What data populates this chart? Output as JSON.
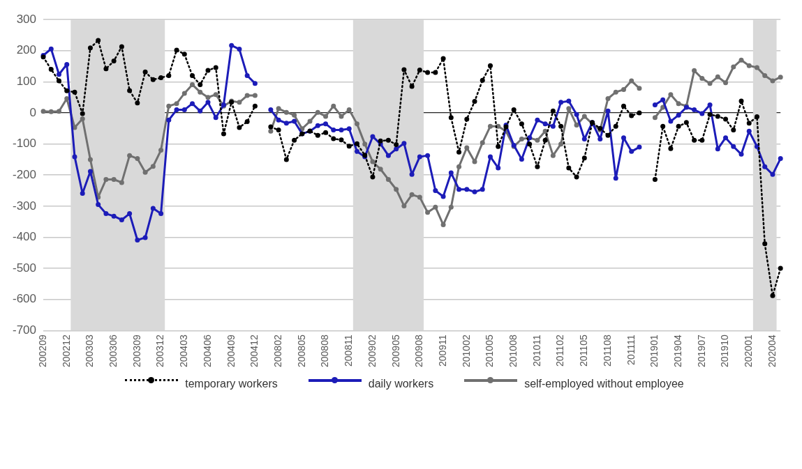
{
  "chart_data": {
    "type": "line",
    "categories": [
      "200209",
      null,
      null,
      "200212",
      null,
      null,
      "200303",
      null,
      null,
      "200306",
      null,
      null,
      "200309",
      null,
      null,
      "200312",
      null,
      null,
      "200403",
      null,
      null,
      "200406",
      null,
      null,
      "200409",
      null,
      null,
      "200412",
      null,
      null,
      "200802",
      null,
      null,
      "200805",
      null,
      null,
      "200808",
      null,
      null,
      "200811",
      null,
      null,
      "200902",
      null,
      null,
      "200905",
      null,
      null,
      "200908",
      null,
      null,
      "200911",
      null,
      null,
      "201002",
      null,
      null,
      "201005",
      null,
      null,
      "201008",
      null,
      null,
      "201011",
      null,
      null,
      "201102",
      null,
      null,
      "201105",
      null,
      null,
      "201108",
      null,
      null,
      "201111",
      null,
      null,
      "201901",
      null,
      null,
      "201904",
      null,
      null,
      "201907",
      null,
      null,
      "201910",
      null,
      null,
      "202001",
      null,
      null,
      "202004",
      null
    ],
    "series": [
      {
        "name": "temporary workers",
        "color": "#000000",
        "line_style": "dotted",
        "marker": "circle",
        "values": [
          180,
          140,
          103,
          71,
          67,
          -2,
          209,
          233,
          142,
          167,
          213,
          72,
          32,
          132,
          107,
          113,
          120,
          202,
          189,
          120,
          91,
          137,
          146,
          -67,
          35,
          -47,
          -28,
          22,
          null,
          -45,
          -55,
          -150,
          -88,
          -67,
          -58,
          -72,
          -63,
          -83,
          -87,
          -107,
          -99,
          -136,
          -206,
          -90,
          -88,
          -102,
          139,
          85,
          138,
          130,
          130,
          175,
          -15,
          -126,
          -20,
          37,
          105,
          152,
          -108,
          -45,
          10,
          -35,
          -100,
          -173,
          -88,
          6,
          -43,
          -177,
          -206,
          -145,
          -31,
          -50,
          -72,
          -43,
          22,
          -9,
          0,
          null,
          -214,
          -43,
          -115,
          -43,
          -31,
          -88,
          -88,
          -5,
          -11,
          -20,
          -55,
          38,
          -33,
          -12,
          -421,
          -588,
          -500
        ]
      },
      {
        "name": "daily workers",
        "color": "#1c1cb8",
        "line_style": "solid",
        "marker": "circle",
        "values": [
          185,
          206,
          124,
          156,
          -141,
          -259,
          -188,
          -295,
          -324,
          -332,
          -344,
          -324,
          -409,
          -401,
          -307,
          -324,
          -23,
          10,
          10,
          30,
          6,
          34,
          -15,
          26,
          217,
          205,
          120,
          95,
          null,
          10,
          -23,
          -33,
          -27,
          -67,
          -59,
          -41,
          -35,
          -55,
          -55,
          -51,
          -124,
          -141,
          -76,
          -100,
          -137,
          -116,
          -98,
          -198,
          -141,
          -137,
          -250,
          -269,
          -193,
          -246,
          -246,
          -254,
          -246,
          -141,
          -177,
          -39,
          -104,
          -149,
          -80,
          -23,
          -35,
          -43,
          34,
          38,
          -5,
          -84,
          -31,
          -84,
          6,
          -210,
          -80,
          -124,
          -110,
          null,
          26,
          42,
          -27,
          -7,
          18,
          10,
          -2,
          26,
          -116,
          -80,
          -108,
          -133,
          -59,
          -108,
          -173,
          -198,
          -147
        ]
      },
      {
        "name": "self-employed without employee",
        "color": "#707070",
        "line_style": "solid",
        "marker": "circle",
        "values": [
          5,
          4,
          5,
          46,
          -47,
          -19,
          -150,
          -271,
          -214,
          -214,
          -224,
          -137,
          -147,
          -191,
          -172,
          -120,
          22,
          30,
          63,
          91,
          67,
          50,
          59,
          22,
          38,
          34,
          56,
          56,
          null,
          -59,
          14,
          2,
          -7,
          -51,
          -27,
          2,
          -11,
          22,
          -11,
          10,
          -35,
          -100,
          -157,
          -181,
          -214,
          -246,
          -299,
          -263,
          -271,
          -320,
          -303,
          -360,
          -303,
          -173,
          -112,
          -157,
          -96,
          -43,
          -43,
          -59,
          -108,
          -84,
          -80,
          -88,
          -59,
          -137,
          -100,
          14,
          -39,
          -11,
          -35,
          -55,
          46,
          67,
          75,
          103,
          79,
          null,
          -15,
          18,
          59,
          30,
          22,
          136,
          111,
          95,
          116,
          97,
          148,
          170,
          152,
          146,
          120,
          103,
          115
        ]
      }
    ],
    "ylim": [
      -700,
      300
    ],
    "yticks": [
      -700,
      -600,
      -500,
      -400,
      -300,
      -200,
      -100,
      0,
      100,
      200,
      300
    ],
    "grid": "y",
    "legend": "bottom",
    "bands": [
      {
        "axis": "x",
        "from": "200212",
        "to": "200312",
        "color": "#d9d9d9"
      },
      {
        "axis": "x",
        "from": "200811",
        "to": "200908",
        "color": "#d9d9d9"
      },
      {
        "axis": "x",
        "from": "202001",
        "to": "202004",
        "color": "#d9d9d9"
      }
    ]
  }
}
